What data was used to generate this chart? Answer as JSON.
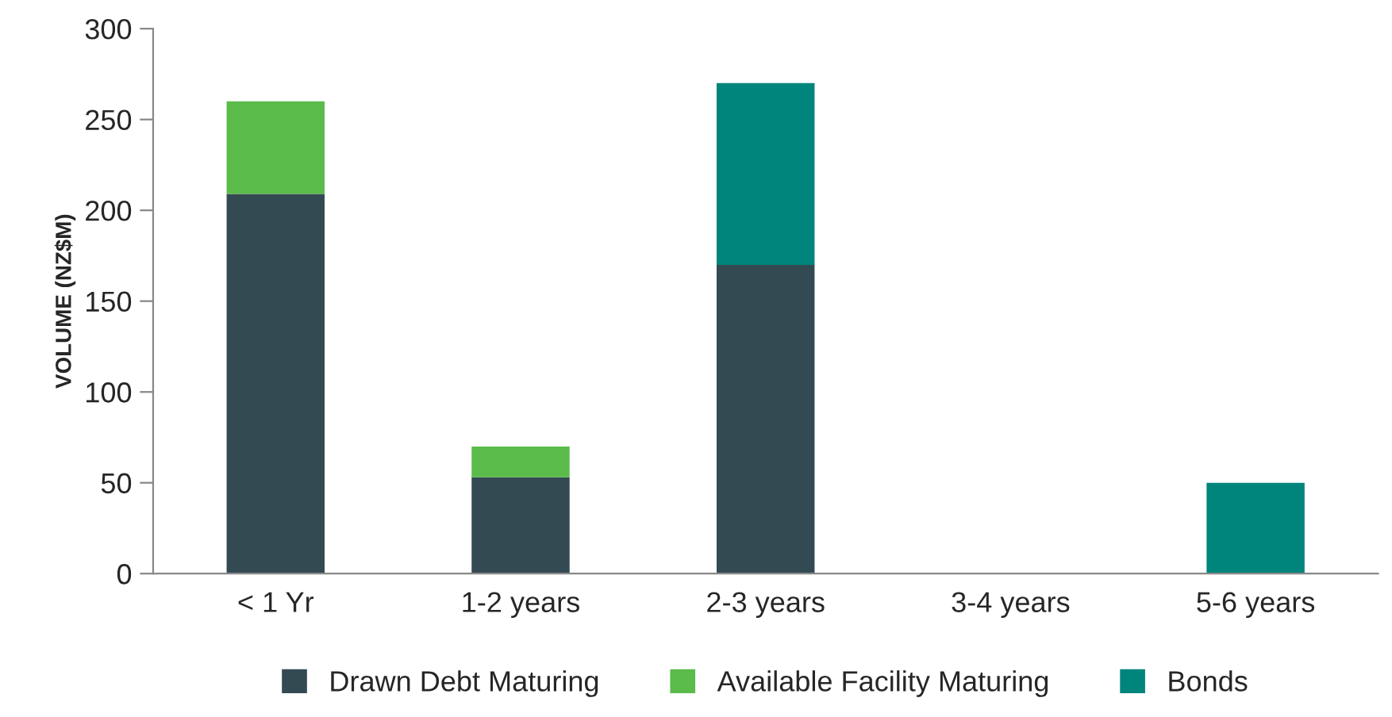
{
  "chart_data": {
    "type": "bar",
    "stacked": true,
    "ylabel": "VOLUME (NZ$M)",
    "categories": [
      "< 1 Yr",
      "1-2 years",
      "2-3 years",
      "3-4 years",
      "5-6 years"
    ],
    "series": [
      {
        "name": "Drawn Debt Maturing",
        "color": "#344a53",
        "values": [
          209,
          53,
          170,
          0,
          0
        ]
      },
      {
        "name": "Available Facility Maturing",
        "color": "#5bbb4b",
        "values": [
          51,
          17,
          0,
          0,
          0
        ]
      },
      {
        "name": "Bonds",
        "color": "#00857d",
        "values": [
          0,
          0,
          100,
          0,
          50
        ]
      }
    ],
    "ylim": [
      0,
      300
    ],
    "yticks": [
      0,
      50,
      100,
      150,
      200,
      250,
      300
    ],
    "grid": false,
    "legend": "bottom"
  }
}
